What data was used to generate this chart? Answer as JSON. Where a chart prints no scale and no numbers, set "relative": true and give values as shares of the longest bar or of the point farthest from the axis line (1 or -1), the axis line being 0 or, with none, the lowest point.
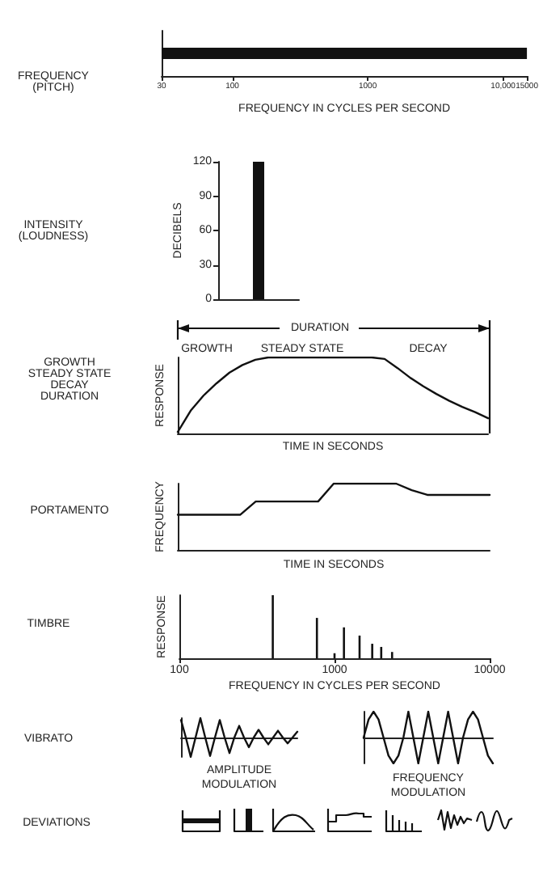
{
  "chart_data": [
    {
      "type": "bar",
      "annotations": [
        "FREQUENCY\n(PITCH)"
      ],
      "orientation": "horizontal",
      "categories": [
        null
      ],
      "values": [
        15000
      ],
      "color": "#111111",
      "log": "x",
      "xlim": [
        30,
        15000
      ],
      "xticks": [
        30,
        100,
        1000,
        {
          "value": 10000,
          "label": "10,000"
        },
        15000
      ],
      "xlabel": "FREQUENCY IN CYCLES PER SECOND",
      "tick_labels": "x"
    },
    {
      "type": "bar",
      "annotations": [
        "INTENSITY\n(LOUDNESS)"
      ],
      "categories": [
        null
      ],
      "values": [
        120
      ],
      "color": "#111111",
      "ylim": [
        0,
        120
      ],
      "yticks": [
        0,
        30,
        60,
        90,
        120
      ],
      "ylabel": "DECIBELS",
      "tick_labels": "y"
    },
    {
      "type": "line",
      "relative": true,
      "categories": [
        null,
        null,
        null,
        null,
        null,
        null,
        null,
        null,
        null,
        null,
        null,
        null,
        null,
        null,
        null,
        null,
        null,
        null,
        null,
        null,
        null,
        null,
        null,
        null,
        null
      ],
      "values": [
        0.02,
        0.3,
        0.5,
        0.66,
        0.8,
        0.9,
        0.97,
        1,
        1,
        1,
        1,
        1,
        1,
        1,
        1,
        1,
        0.98,
        0.86,
        0.73,
        0.62,
        0.52,
        0.43,
        0.35,
        0.28,
        0.2
      ],
      "color": "#111111",
      "xlabel": "TIME IN SECONDS",
      "ylabel": "RESPONSE",
      "annotations": [
        "GROWTH\nSTEADY STATE\nDECAY\nDURATION",
        "DURATION",
        "GROWTH",
        "STEADY STATE",
        "DECAY"
      ],
      "tick_labels": false
    },
    {
      "type": "line",
      "annotations": [
        "PORTAMENTO"
      ],
      "relative": true,
      "categories": [
        null,
        null,
        null,
        null,
        null,
        null,
        null,
        null,
        null,
        null,
        null,
        null,
        null,
        null,
        null,
        null,
        null,
        null,
        null,
        null,
        null
      ],
      "values": [
        0.53,
        0.53,
        0.53,
        0.53,
        0.53,
        0.73,
        0.73,
        0.73,
        0.73,
        0.73,
        1,
        1,
        1,
        1,
        1,
        0.9,
        0.83,
        0.83,
        0.83,
        0.83,
        0.83
      ],
      "color": "#111111",
      "xlabel": "TIME IN SECONDS",
      "ylabel": "FREQUENCY",
      "tick_labels": false
    },
    {
      "type": "bar",
      "annotations": [
        "TIMBRE"
      ],
      "relative": true,
      "x": [
        400,
        770,
        1000,
        1150,
        1450,
        1750,
        2000,
        2350
      ],
      "values": [
        1,
        0.64,
        0.08,
        0.49,
        0.36,
        0.23,
        0.18,
        0.1
      ],
      "color": "#111111",
      "log": "x",
      "xlim": [
        100,
        10000
      ],
      "xticks": [
        100,
        1000,
        10000
      ],
      "xlabel": "FREQUENCY IN CYCLES PER SECOND",
      "ylabel": "RESPONSE",
      "tick_labels": "x"
    },
    {
      "type": "line",
      "annotations": [
        "VIBRATO"
      ],
      "relative": true,
      "categories": [
        null,
        null,
        null,
        null,
        null,
        null,
        null,
        null,
        null,
        null,
        null,
        null,
        null,
        null,
        null,
        null,
        null,
        null,
        null,
        null,
        null,
        null,
        null,
        null,
        null
      ],
      "values": [
        0.9,
        0,
        -1,
        0,
        1,
        0,
        -0.95,
        0,
        0.9,
        0,
        -0.8,
        0,
        0.6,
        0,
        -0.5,
        0,
        0.4,
        0,
        -0.35,
        0,
        0.35,
        0,
        -0.3,
        0,
        0.3
      ],
      "color": "#111111",
      "xlabel": "AMPLITUDE\nMODULATION",
      "tick_labels": false
    },
    {
      "type": "line",
      "relative": true,
      "categories": [
        null,
        null,
        null,
        null,
        null,
        null,
        null,
        null,
        null,
        null,
        null,
        null,
        null,
        null,
        null,
        null,
        null,
        null,
        null,
        null,
        null,
        null,
        null,
        null,
        null,
        null,
        null
      ],
      "values": [
        0,
        0.7,
        1,
        0.7,
        0,
        -0.7,
        -1,
        -0.7,
        0,
        1,
        0,
        -1,
        0,
        1,
        0,
        -1,
        0,
        1,
        0,
        -1,
        0,
        0.7,
        1,
        0.7,
        0,
        -0.7,
        -1
      ],
      "color": "#111111",
      "xlabel": "FREQUENCY\nMODULATION",
      "tick_labels": false
    },
    {
      "type": "other",
      "annotations": [
        "DEVIATIONS"
      ]
    }
  ]
}
